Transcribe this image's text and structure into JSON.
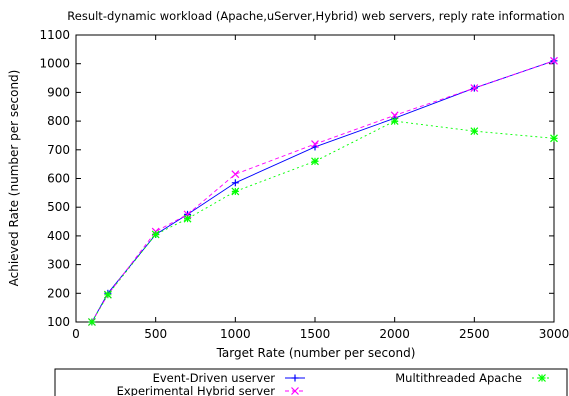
{
  "chart_data": {
    "type": "line",
    "title": "Result-dynamic workload (Apache,uServer,Hybrid) web servers, reply rate information",
    "xlabel": "Target Rate (number per second)",
    "ylabel": "Achieved Rate (number per second)",
    "xlim": [
      0,
      3000
    ],
    "ylim": [
      100,
      1100
    ],
    "xticks": [
      0,
      500,
      1000,
      1500,
      2000,
      2500,
      3000
    ],
    "yticks": [
      100,
      200,
      300,
      400,
      500,
      600,
      700,
      800,
      900,
      1000,
      1100
    ],
    "grid": false,
    "legend_position": "bottom",
    "series": [
      {
        "name": "Event-Driven userver",
        "color": "#0000ff",
        "marker": "plus",
        "dash": "solid",
        "x": [
          100,
          200,
          500,
          700,
          1000,
          1500,
          2000,
          2500,
          3000
        ],
        "y": [
          100,
          200,
          405,
          475,
          585,
          710,
          810,
          915,
          1010
        ]
      },
      {
        "name": "Experimental Hybrid server",
        "color": "#ff00ff",
        "marker": "cross",
        "dash": "dashed",
        "x": [
          100,
          200,
          500,
          700,
          1000,
          1500,
          2000,
          2500,
          3000
        ],
        "y": [
          100,
          195,
          415,
          475,
          615,
          720,
          820,
          915,
          1010
        ]
      },
      {
        "name": "Multithreaded Apache",
        "color": "#00ff00",
        "marker": "star",
        "dash": "dotted",
        "x": [
          100,
          200,
          500,
          700,
          1000,
          1500,
          2000,
          2500,
          3000
        ],
        "y": [
          100,
          195,
          405,
          460,
          555,
          660,
          800,
          765,
          740
        ]
      }
    ]
  }
}
